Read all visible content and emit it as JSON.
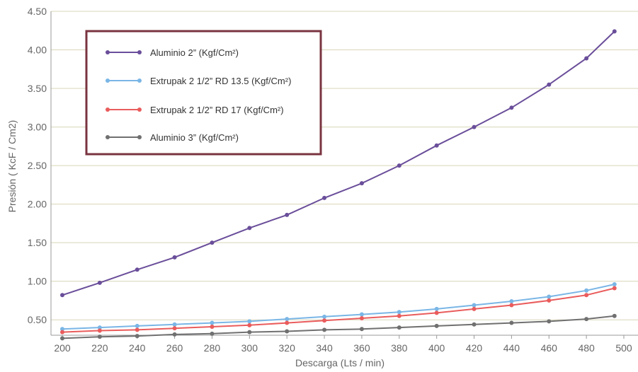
{
  "chart_data": {
    "type": "line",
    "xlabel": "Descarga (Lts / min)",
    "ylabel": "Presión ( KcF / Cm2)",
    "x": [
      200,
      220,
      240,
      260,
      280,
      300,
      320,
      340,
      360,
      380,
      400,
      420,
      440,
      460,
      480,
      495
    ],
    "xticks": [
      200,
      220,
      240,
      260,
      280,
      300,
      320,
      340,
      360,
      380,
      400,
      420,
      440,
      460,
      480,
      500
    ],
    "yticks": [
      "0.50",
      "1.00",
      "1.50",
      "2.00",
      "2.50",
      "3.00",
      "3.50",
      "4.00",
      "4.50"
    ],
    "xlim": [
      198,
      502
    ],
    "ylim": [
      0.3,
      4.5
    ],
    "grid": true,
    "legend_position": "top-left",
    "series": [
      {
        "name": "Aluminio 2” (Kgf/Cm²)",
        "color": "#6a4e9a",
        "values": [
          0.82,
          0.98,
          1.15,
          1.31,
          1.5,
          1.69,
          1.86,
          2.08,
          2.27,
          2.5,
          2.76,
          3.0,
          3.25,
          3.55,
          3.89,
          4.24
        ]
      },
      {
        "name": "Extrupak 2 1/2” RD 13.5 (Kgf/Cm²)",
        "color": "#7ab6e6",
        "values": [
          0.38,
          0.4,
          0.42,
          0.44,
          0.46,
          0.48,
          0.51,
          0.54,
          0.57,
          0.6,
          0.64,
          0.69,
          0.74,
          0.8,
          0.88,
          0.96
        ]
      },
      {
        "name": "Extrupak 2 1/2” RD 17 (Kgf/Cm²)",
        "color": "#ea5c5c",
        "values": [
          0.34,
          0.36,
          0.37,
          0.39,
          0.41,
          0.43,
          0.46,
          0.49,
          0.52,
          0.55,
          0.59,
          0.64,
          0.69,
          0.75,
          0.82,
          0.91
        ]
      },
      {
        "name": "Aluminio 3” (Kgf/Cm²)",
        "color": "#707070",
        "values": [
          0.26,
          0.28,
          0.29,
          0.31,
          0.32,
          0.34,
          0.35,
          0.37,
          0.38,
          0.4,
          0.42,
          0.44,
          0.46,
          0.48,
          0.51,
          0.55
        ]
      }
    ]
  }
}
